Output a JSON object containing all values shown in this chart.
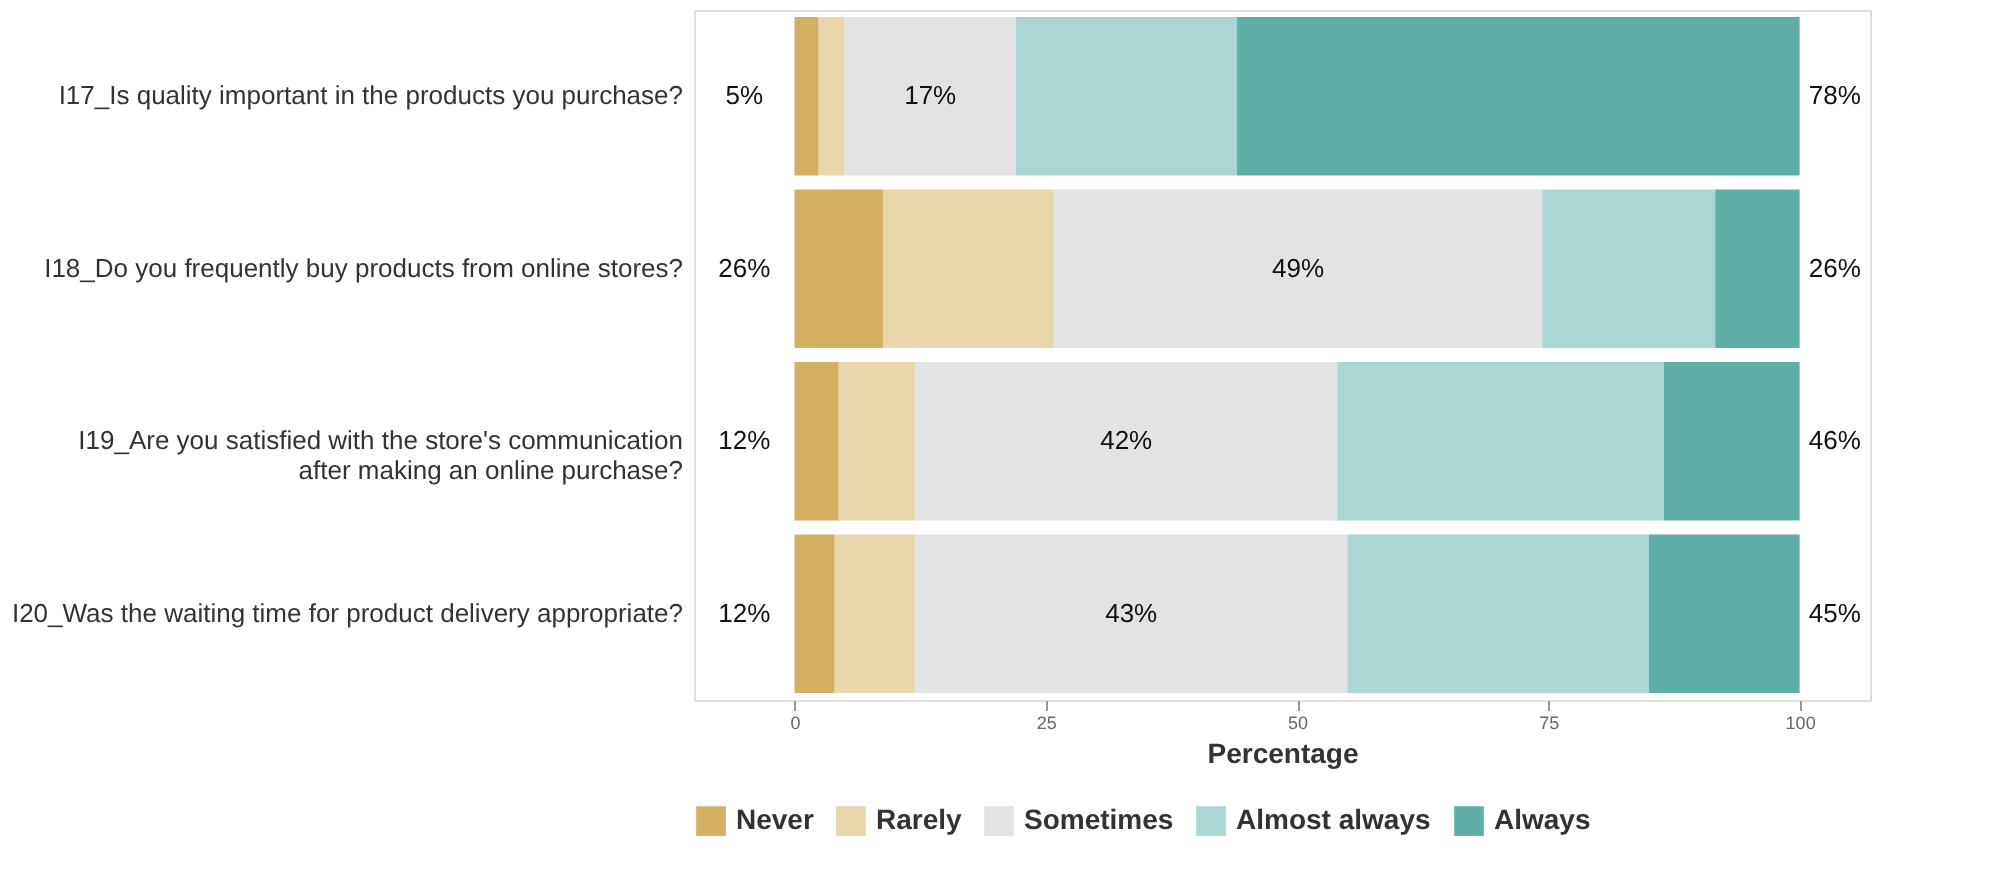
{
  "chart_data": {
    "type": "bar",
    "orientation": "horizontal",
    "stacked": true,
    "xlabel": "Percentage",
    "categories": [
      "I17_Is quality important in the products you purchase?",
      "I18_Do you frequently buy products from online stores?",
      "I19_Are you satisfied with the store's communication after making an online purchase?",
      "I20_Was the waiting time for product delivery appropriate?"
    ],
    "series": [
      {
        "name": "Never",
        "color": "#d4b064",
        "values": [
          2.4,
          8.8,
          4.4,
          4
        ]
      },
      {
        "name": "Rarely",
        "color": "#e8d6ad",
        "values": [
          2.6,
          17,
          7.6,
          8
        ]
      },
      {
        "name": "Sometimes",
        "color": "#e2e3e5",
        "values": [
          17,
          48.6,
          42,
          43
        ],
        "value_labels": [
          "17%",
          "49%",
          "42%",
          "43%"
        ]
      },
      {
        "name": "Almost always",
        "color": "#aad6d3",
        "values": [
          22,
          17.2,
          32.5,
          30
        ]
      },
      {
        "name": "Always",
        "color": "#5fafa6",
        "values": [
          56,
          8.4,
          13.5,
          15
        ]
      }
    ],
    "annotations": [
      "5%",
      "26%",
      "12%",
      "12%",
      "78%",
      "26%",
      "46%",
      "45%"
    ],
    "xlim": [
      -10,
      107
    ],
    "xticks": [
      0,
      25,
      50,
      75,
      100
    ],
    "grid": false,
    "legend": "bottom"
  }
}
